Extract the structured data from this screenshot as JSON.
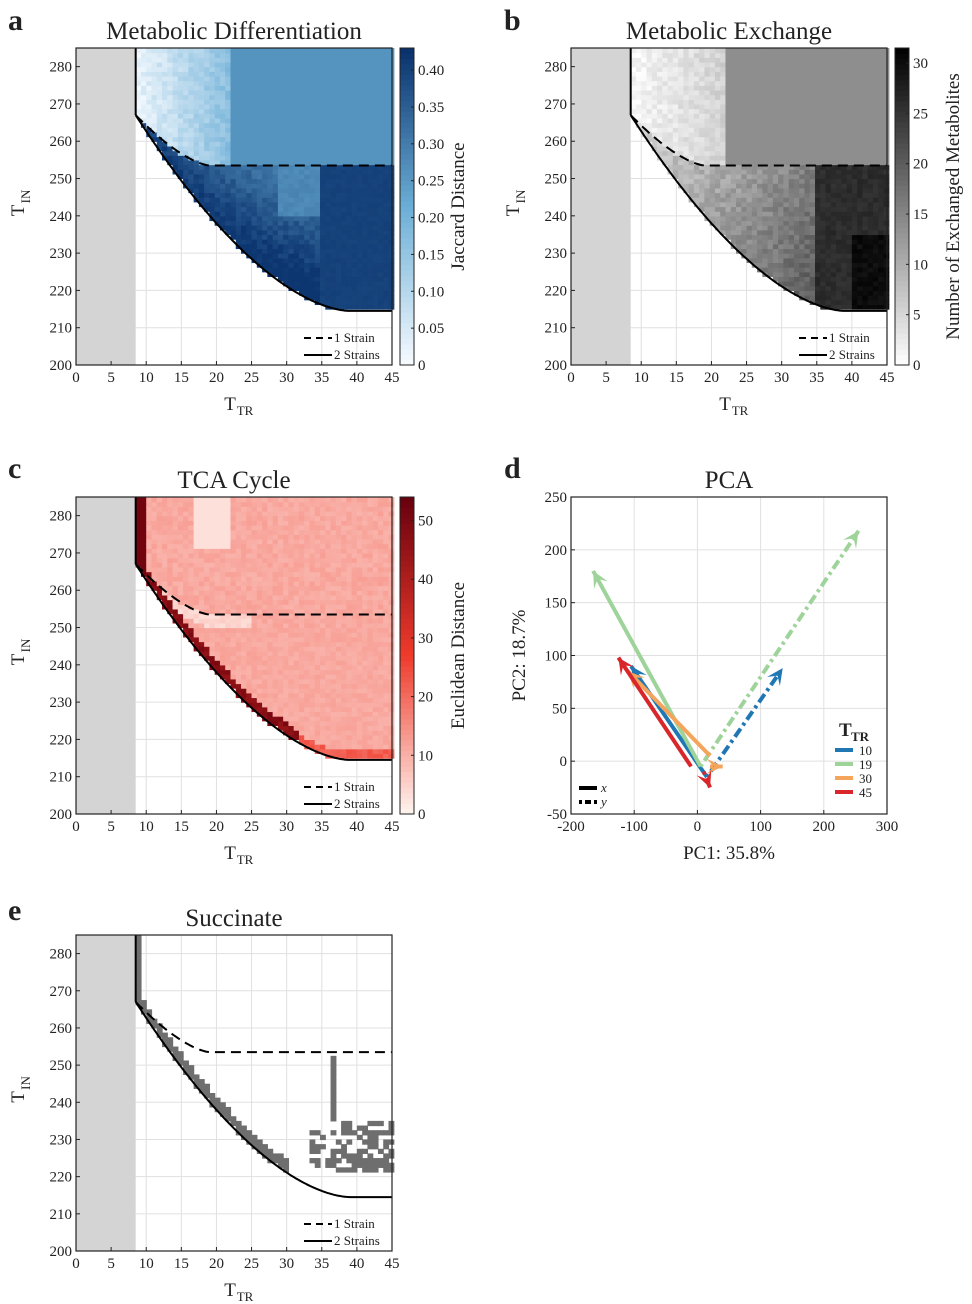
{
  "figure": {
    "panel_letters": [
      "a",
      "b",
      "c",
      "d",
      "e"
    ]
  },
  "colors": {
    "infeasible_region": "#d4d4d4",
    "grid": "#e0e0e0",
    "pca_series": {
      "10": "#1f77b4",
      "19": "#9ed39a",
      "30": "#f5a45c",
      "45": "#d9262b"
    }
  },
  "chart_data": [
    {
      "panel": "a",
      "type": "heatmap",
      "title": "Metabolic Differentiation",
      "xlabel": "T",
      "xlabel_sub": "TR",
      "ylabel": "T",
      "ylabel_sub": "IN",
      "xlim": [
        0,
        45
      ],
      "ylim": [
        200,
        285
      ],
      "xticks": [
        "0",
        "5",
        "10",
        "15",
        "20",
        "25",
        "30",
        "35",
        "40",
        "45"
      ],
      "yticks": [
        "200",
        "210",
        "220",
        "230",
        "240",
        "250",
        "260",
        "270",
        "280"
      ],
      "colorbar": {
        "label": "Jaccard Distance",
        "range": [
          0,
          0.43
        ],
        "colormap": "blues",
        "ticks": [
          "0",
          "0.05",
          "0.10",
          "0.15",
          "0.20",
          "0.25",
          "0.30",
          "0.35",
          "0.40"
        ]
      },
      "legend": {
        "placement": "bottom-right",
        "entries": [
          "1 Strain",
          "2 Strains"
        ]
      },
      "regions": [
        {
          "x": [
            0,
            8.5
          ],
          "y": [
            200,
            285
          ],
          "value": "infeasible"
        },
        {
          "x": [
            22,
            45
          ],
          "y": [
            253.5,
            285
          ],
          "value": 0.26
        },
        {
          "x": [
            35,
            45
          ],
          "y": [
            215,
            253.5
          ],
          "value": 0.4
        }
      ]
    },
    {
      "panel": "b",
      "type": "heatmap",
      "title": "Metabolic Exchange",
      "xlabel": "T",
      "xlabel_sub": "TR",
      "ylabel": "T",
      "ylabel_sub": "IN",
      "xlim": [
        0,
        45
      ],
      "ylim": [
        200,
        285
      ],
      "xticks": [
        "0",
        "5",
        "10",
        "15",
        "20",
        "25",
        "30",
        "35",
        "40",
        "45"
      ],
      "yticks": [
        "200",
        "210",
        "220",
        "230",
        "240",
        "250",
        "260",
        "270",
        "280"
      ],
      "colorbar": {
        "label": "Number of Exchanged Metabolites",
        "range": [
          0,
          31.5
        ],
        "colormap": "grays",
        "ticks": [
          "0",
          "5",
          "10",
          "15",
          "20",
          "25",
          "30"
        ]
      },
      "legend": {
        "placement": "bottom-right",
        "entries": [
          "1 Strain",
          "2 Strains"
        ]
      },
      "regions": [
        {
          "x": [
            22,
            45
          ],
          "y": [
            253.5,
            285
          ],
          "value": 14
        },
        {
          "x": [
            35,
            45
          ],
          "y": [
            215,
            253.5
          ],
          "value": 26
        }
      ]
    },
    {
      "panel": "c",
      "type": "heatmap",
      "title": "TCA Cycle",
      "xlabel": "T",
      "xlabel_sub": "TR",
      "ylabel": "T",
      "ylabel_sub": "IN",
      "xlim": [
        0,
        45
      ],
      "ylim": [
        200,
        285
      ],
      "xticks": [
        "0",
        "5",
        "10",
        "15",
        "20",
        "25",
        "30",
        "35",
        "40",
        "45"
      ],
      "yticks": [
        "200",
        "210",
        "220",
        "230",
        "240",
        "250",
        "260",
        "270",
        "280"
      ],
      "colorbar": {
        "label": "Euclidean Distance",
        "range": [
          0,
          54
        ],
        "colormap": "reds",
        "ticks": [
          "0",
          "10",
          "20",
          "30",
          "40",
          "50"
        ]
      },
      "legend": {
        "placement": "bottom-right",
        "entries": [
          "1 Strain",
          "2 Strains"
        ]
      },
      "regions": [
        {
          "x": [
            8.5,
            45
          ],
          "y": [
            215,
            285
          ],
          "value": 10
        },
        {
          "x": [
            8.5,
            10
          ],
          "y": [
            265,
            285
          ],
          "value": 52
        }
      ]
    },
    {
      "panel": "d",
      "type": "scatter",
      "title": "PCA",
      "xlabel": "PC1: 35.8%",
      "ylabel": "PC2: 18.7%",
      "xlim": [
        -200,
        300
      ],
      "ylim": [
        -50,
        250
      ],
      "xticks": [
        "-200",
        "-100",
        "0",
        "100",
        "200",
        "300"
      ],
      "yticks": [
        "-50",
        "0",
        "50",
        "100",
        "150",
        "200",
        "250"
      ],
      "legend": {
        "title": "T",
        "title_sub": "TR",
        "placement": "bottom-right",
        "entries": [
          "10",
          "19",
          "30",
          "45"
        ],
        "style_entries": [
          "x",
          "y"
        ]
      },
      "vectors": [
        {
          "series": "10",
          "axis": "x",
          "from": [
            15,
            -15
          ],
          "to": [
            -105,
            90
          ]
        },
        {
          "series": "10",
          "axis": "y",
          "from": [
            15,
            -15
          ],
          "to": [
            135,
            88
          ]
        },
        {
          "series": "19",
          "axis": "x",
          "from": [
            5,
            -5
          ],
          "to": [
            -165,
            180
          ]
        },
        {
          "series": "19",
          "axis": "y",
          "from": [
            5,
            -5
          ],
          "to": [
            255,
            218
          ]
        },
        {
          "series": "30",
          "axis": "x",
          "from": [
            20,
            5
          ],
          "to": [
            -110,
            85
          ]
        },
        {
          "series": "30",
          "axis": "y",
          "from": [
            20,
            -5
          ],
          "to": [
            40,
            -5
          ]
        },
        {
          "series": "45",
          "axis": "x",
          "from": [
            -10,
            -5
          ],
          "to": [
            -125,
            98
          ]
        },
        {
          "series": "45",
          "axis": "y",
          "from": [
            10,
            -10
          ],
          "to": [
            20,
            -25
          ]
        }
      ]
    },
    {
      "panel": "e",
      "type": "heatmap",
      "title": "Succinate",
      "xlabel": "T",
      "xlabel_sub": "TR",
      "ylabel": "T",
      "ylabel_sub": "IN",
      "xlim": [
        0,
        45
      ],
      "ylim": [
        200,
        285
      ],
      "xticks": [
        "0",
        "5",
        "10",
        "15",
        "20",
        "25",
        "30",
        "35",
        "40",
        "45"
      ],
      "yticks": [
        "200",
        "210",
        "220",
        "230",
        "240",
        "250",
        "260",
        "270",
        "280"
      ],
      "legend": {
        "placement": "bottom-right",
        "entries": [
          "1 Strain",
          "2 Strains"
        ]
      },
      "regions": [
        {
          "x": [
            8.5,
            10
          ],
          "y": [
            270,
            285
          ],
          "value": "succinate"
        },
        {
          "x": [
            36,
            37
          ],
          "y": [
            235,
            252
          ],
          "value": "succinate"
        },
        {
          "x": [
            37,
            45
          ],
          "y": [
            221,
            235
          ],
          "value": "succinate"
        }
      ]
    }
  ]
}
